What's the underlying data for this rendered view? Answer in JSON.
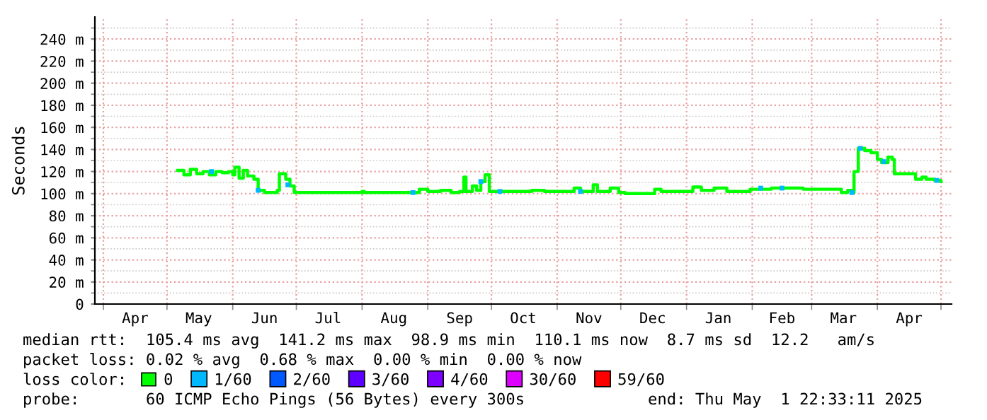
{
  "chart_data": {
    "type": "step",
    "ylabel": "Seconds",
    "legend": "bottom",
    "legend_title": "loss color:",
    "grid": true,
    "marker": "none",
    "line_style": "solid",
    "xlim": [
      "2024-03-28",
      "2025-05-06"
    ],
    "xticks": [
      {
        "value": "2024-04-01",
        "label": null
      },
      {
        "value": "2024-04-16",
        "label": "Apr"
      },
      {
        "value": "2024-05-01",
        "label": null
      },
      {
        "value": "2024-05-16",
        "label": "May"
      },
      {
        "value": "2024-06-01",
        "label": null
      },
      {
        "value": "2024-06-16",
        "label": "Jun"
      },
      {
        "value": "2024-07-01",
        "label": null
      },
      {
        "value": "2024-07-16",
        "label": "Jul"
      },
      {
        "value": "2024-08-01",
        "label": null
      },
      {
        "value": "2024-08-16",
        "label": "Aug"
      },
      {
        "value": "2024-09-01",
        "label": null
      },
      {
        "value": "2024-09-16",
        "label": "Sep"
      },
      {
        "value": "2024-10-01",
        "label": null
      },
      {
        "value": "2024-10-16",
        "label": "Oct"
      },
      {
        "value": "2024-11-01",
        "label": null
      },
      {
        "value": "2024-11-16",
        "label": "Nov"
      },
      {
        "value": "2024-12-01",
        "label": null
      },
      {
        "value": "2024-12-16",
        "label": "Dec"
      },
      {
        "value": "2025-01-01",
        "label": null
      },
      {
        "value": "2025-01-16",
        "label": "Jan"
      },
      {
        "value": "2025-02-01",
        "label": null
      },
      {
        "value": "2025-02-15",
        "label": "Feb"
      },
      {
        "value": "2025-03-01",
        "label": null
      },
      {
        "value": "2025-03-16",
        "label": "Mar"
      },
      {
        "value": "2025-04-01",
        "label": null
      },
      {
        "value": "2025-04-16",
        "label": "Apr"
      },
      {
        "value": "2025-05-01",
        "label": null
      }
    ],
    "ylim": [
      0,
      260
    ],
    "yticks": [
      0,
      {
        "value": 10,
        "label": null
      },
      {
        "value": 20,
        "label": "20 m"
      },
      {
        "value": 30,
        "label": null
      },
      {
        "value": 40,
        "label": "40 m"
      },
      {
        "value": 50,
        "label": null
      },
      {
        "value": 60,
        "label": "60 m"
      },
      {
        "value": 70,
        "label": null
      },
      {
        "value": 80,
        "label": "80 m"
      },
      {
        "value": 90,
        "label": null
      },
      {
        "value": 100,
        "label": "100 m"
      },
      {
        "value": 110,
        "label": null
      },
      {
        "value": 120,
        "label": "120 m"
      },
      {
        "value": 130,
        "label": null
      },
      {
        "value": 140,
        "label": "140 m"
      },
      {
        "value": 150,
        "label": null
      },
      {
        "value": 160,
        "label": "160 m"
      },
      {
        "value": 170,
        "label": null
      },
      {
        "value": 180,
        "label": "180 m"
      },
      {
        "value": 190,
        "label": null
      },
      {
        "value": 200,
        "label": "200 m"
      },
      {
        "value": 210,
        "label": null
      },
      {
        "value": 220,
        "label": "220 m"
      },
      {
        "value": 230,
        "label": null
      },
      {
        "value": 240,
        "label": "240 m"
      },
      {
        "value": 250,
        "label": null
      }
    ],
    "annotations": [
      "median rtt:  105.4 ms avg  141.2 ms max  98.9 ms min  110.1 ms now  8.7 ms sd  12.2   am/s",
      "packet loss: 0.02 % avg  0.68 % max  0.00 % min  0.00 % now",
      "probe:       60 ICMP Echo Pings (56 Bytes) every 300s             end: Thu May  1 22:33:11 2025"
    ],
    "series": [
      {
        "name": "0",
        "color": "#00ff00",
        "x": [
          "2024-05-06",
          "2024-05-09",
          "2024-05-12",
          "2024-05-15",
          "2024-05-18",
          "2024-05-21",
          "2024-05-24",
          "2024-05-27",
          "2024-05-30",
          "2024-06-01",
          "2024-06-02",
          "2024-06-04",
          "2024-06-06",
          "2024-06-08",
          "2024-06-11",
          "2024-06-13",
          "2024-06-16",
          "2024-06-20",
          "2024-06-22",
          "2024-06-23",
          "2024-06-26",
          "2024-06-28",
          "2024-06-30",
          "2024-07-31",
          "2024-08-01",
          "2024-08-02",
          "2024-08-25",
          "2024-08-28",
          "2024-09-01",
          "2024-09-07",
          "2024-09-12",
          "2024-09-16",
          "2024-09-18",
          "2024-09-19",
          "2024-09-22",
          "2024-09-24",
          "2024-09-26",
          "2024-09-28",
          "2024-09-30",
          "2024-10-10",
          "2024-10-20",
          "2024-10-26",
          "2024-11-04",
          "2024-11-09",
          "2024-11-12",
          "2024-11-18",
          "2024-11-20",
          "2024-11-26",
          "2024-11-30",
          "2024-12-03",
          "2024-12-15",
          "2024-12-17",
          "2024-12-20",
          "2025-01-01",
          "2025-01-04",
          "2025-01-08",
          "2025-01-14",
          "2025-01-20",
          "2025-01-31",
          "2025-02-10",
          "2025-02-25",
          "2025-03-10",
          "2025-03-15",
          "2025-03-18",
          "2025-03-20",
          "2025-03-21",
          "2025-03-23",
          "2025-03-26",
          "2025-03-29",
          "2025-04-01",
          "2025-04-03",
          "2025-04-06",
          "2025-04-08",
          "2025-04-09",
          "2025-04-17",
          "2025-04-19",
          "2025-04-22",
          "2025-04-24",
          "2025-04-28",
          "2025-05-01"
        ],
        "values": [
          121,
          117,
          122,
          118,
          120,
          117,
          120,
          119,
          120,
          117,
          124,
          114,
          121,
          116,
          113,
          103,
          101,
          101,
          103,
          118,
          113,
          107,
          101,
          101,
          102,
          101,
          101,
          104,
          102,
          103,
          101,
          102,
          115,
          102,
          107,
          103,
          111,
          117,
          102,
          102,
          103,
          102,
          102,
          105,
          102,
          108,
          102,
          105,
          101,
          100,
          100,
          104,
          102,
          102,
          106,
          103,
          105,
          102,
          104,
          105,
          104,
          104,
          101,
          103,
          101,
          120,
          141,
          139,
          137,
          131,
          128,
          133,
          131,
          118,
          118,
          113,
          115,
          113,
          112,
          111
        ]
      },
      {
        "name": "1/60",
        "color": "#00b8ff",
        "type": "scatter",
        "marker": "square",
        "x": [
          "2024-05-22",
          "2024-06-13",
          "2024-06-27",
          "2024-08-25",
          "2024-09-26",
          "2024-10-05",
          "2024-11-12",
          "2025-02-05",
          "2025-02-15",
          "2025-03-20",
          "2025-03-24",
          "2025-04-04",
          "2025-04-29"
        ],
        "values": [
          120,
          103,
          108,
          101,
          111,
          102,
          102,
          105,
          105,
          101,
          141,
          129,
          112
        ]
      },
      {
        "name": "2/60",
        "color": "#0059ff",
        "type": "scatter",
        "marker": "square"
      },
      {
        "name": "3/60",
        "color": "#5e00ff",
        "type": "scatter",
        "marker": "square"
      },
      {
        "name": "4/60",
        "color": "#7e00ff",
        "type": "scatter",
        "marker": "square"
      },
      {
        "name": "30/60",
        "color": "#dd00ff",
        "type": "scatter",
        "marker": "square"
      },
      {
        "name": "59/60",
        "color": "#ff0000",
        "type": "scatter",
        "marker": "square"
      }
    ]
  }
}
